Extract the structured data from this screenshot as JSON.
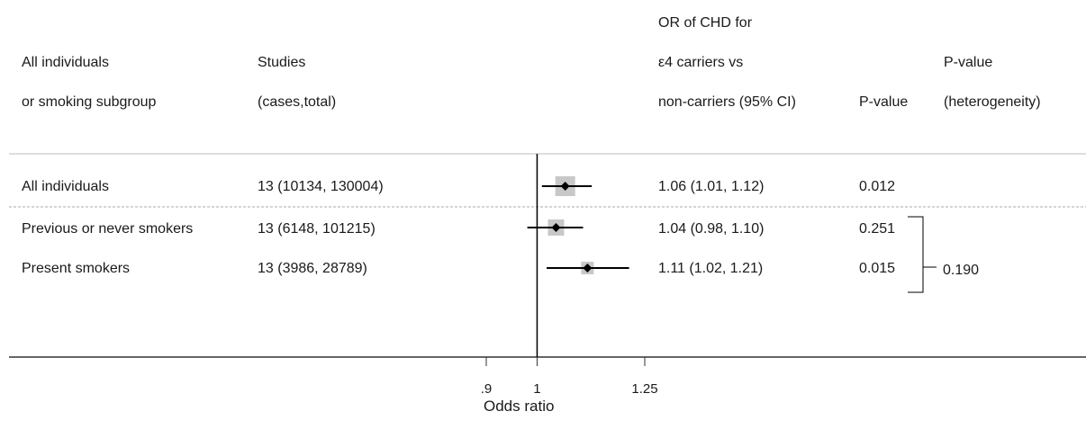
{
  "header": {
    "col1": [
      "All individuals",
      "or smoking subgroup"
    ],
    "col2": [
      "Studies",
      "(cases,total)"
    ],
    "col3": [
      "OR of CHD for",
      "ε4 carriers vs",
      "non-carriers (95% CI)"
    ],
    "col4": "P-value",
    "col5": [
      "P-value",
      "(heterogeneity)"
    ]
  },
  "rows": [
    {
      "label": "All individuals",
      "studies": "13 (10134, 130004)",
      "or_text": "1.06 (1.01, 1.12)",
      "p": "0.012"
    },
    {
      "label": "Previous or never smokers",
      "studies": "13 (6148, 101215)",
      "or_text": "1.04 (0.98, 1.10)",
      "p": "0.251"
    },
    {
      "label": "Present smokers",
      "studies": "13 (3986, 28789)",
      "or_text": "1.11 (1.02, 1.21)",
      "p": "0.015"
    }
  ],
  "heterogeneity_p": "0.190",
  "colors": {
    "ci_line": "#000000",
    "weight_box": "#c8c8c8",
    "divider": "#aaaaaa"
  },
  "chart_data": {
    "type": "scatter",
    "subtype": "forest",
    "xlabel": "Odds ratio",
    "xscale": "log",
    "xlim": [
      0.86,
      1.4
    ],
    "xticks": [
      0.9,
      1,
      1.25
    ],
    "xtick_labels": [
      ".9",
      "1",
      "1.25"
    ],
    "reference_line": 1,
    "series": [
      {
        "categories": [
          "All individuals",
          "Previous or never smokers",
          "Present smokers"
        ],
        "estimate": [
          1.06,
          1.04,
          1.11
        ],
        "ci_low": [
          1.01,
          0.98,
          1.02
        ],
        "ci_high": [
          1.12,
          1.1,
          1.21
        ]
      }
    ]
  }
}
